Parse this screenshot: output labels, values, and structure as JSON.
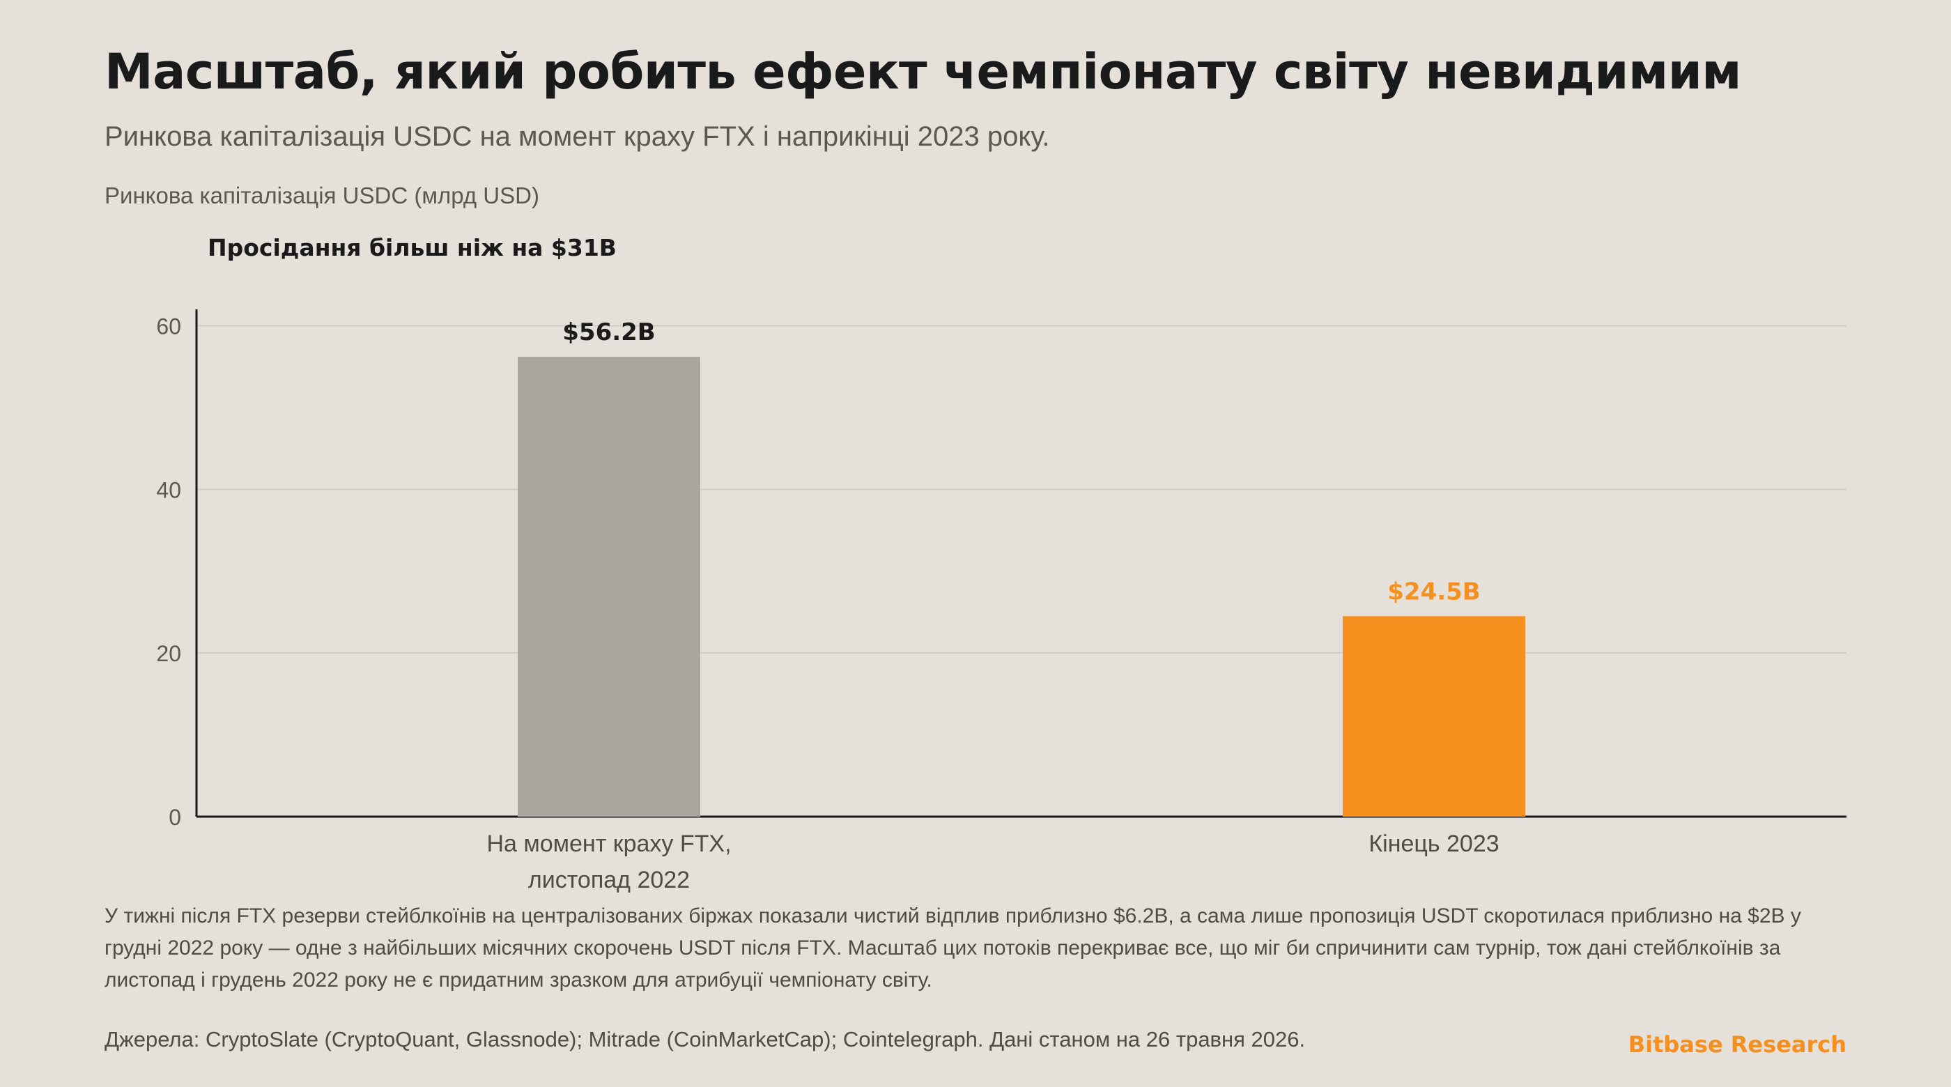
{
  "title": "Масштаб, який робить ефект чемпіонату світу невидимим",
  "subtitle": "Ринкова капіталізація USDC на момент краху FTX і наприкінці 2023 року.",
  "unit_label": "Ринкова капіталізація USDC (млрд USD)",
  "annotation": "Просідання більш ніж на $31B",
  "chart_data": {
    "type": "bar",
    "categories": [
      [
        "На момент краху FTX,",
        "листопад 2022"
      ],
      [
        "Кінець 2023"
      ]
    ],
    "values": [
      56.2,
      24.5
    ],
    "value_labels": [
      "$56.2B",
      "$24.5B"
    ],
    "ylabel": "Ринкова капіталізація USDC (млрд USD)",
    "ylim": [
      0,
      62
    ],
    "yticks": [
      0,
      20,
      40,
      60
    ],
    "grid": true,
    "bar_colors": [
      "#aaa59e",
      "#f5901e"
    ],
    "label_colors": [
      "#1a1a1a",
      "#f5901e"
    ]
  },
  "note": "У тижні після FTX резерви стейблкоїнів на централізованих біржах показали чистий відплив приблизно $6.2B, а сама лише пропозиція USDT скоротилася приблизно на $2B у грудні 2022 року — одне з найбільших місячних скорочень USDT після FTX. Масштаб цих потоків перекриває все, що міг би спричинити сам турнір, тож дані стейблкоїнів за листопад і грудень 2022 року не є придатним зразком для атрибуції чемпіонату світу.",
  "source": "Джерела: CryptoSlate (CryptoQuant, Glassnode); Mitrade (CoinMarketCap); Cointelegraph. Дані станом на 26 травня 2026.",
  "brand": "Bitbase Research",
  "colors": {
    "background": "#e5e0da",
    "accent": "#f5901e",
    "gray_bar": "#aaa59e",
    "text": "#1a1a1a"
  }
}
